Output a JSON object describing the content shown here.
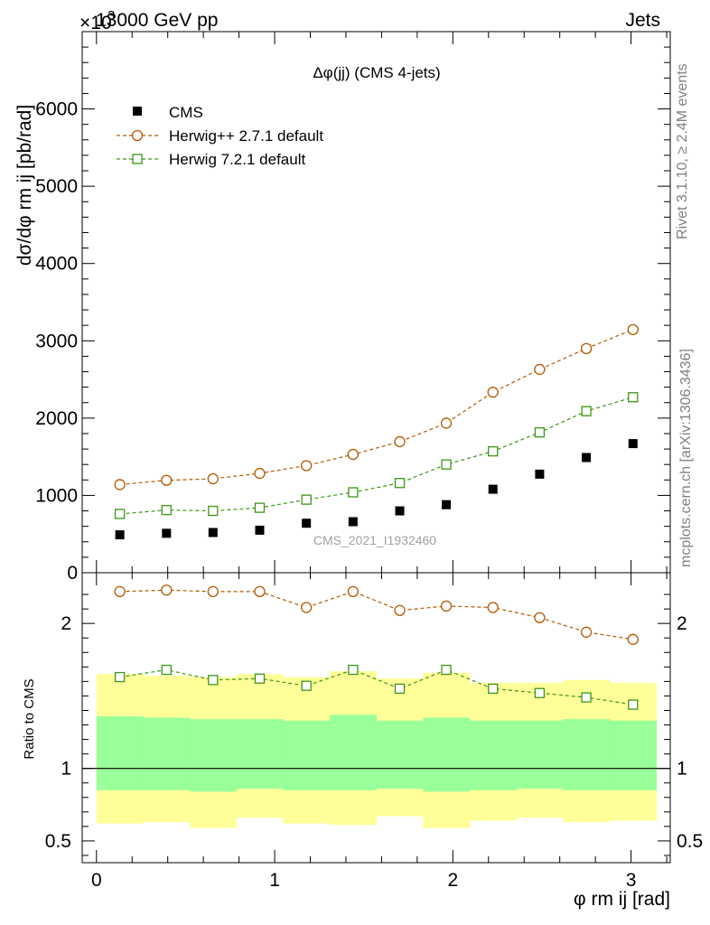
{
  "header": {
    "beam": "13000 GeV pp",
    "process": "Jets",
    "exponent": "×10",
    "exponent_power": "3"
  },
  "side_labels": {
    "rivet": "Rivet 3.1.10, ≥ 2.4M events",
    "mcplots": "mcplots.cern.ch [arXiv:1306.3436]"
  },
  "watermark": "CMS_2021_I1932460",
  "chart_data": [
    {
      "type": "scatter",
      "title": "Δφ(jj) (CMS 4-jets)",
      "xlabel": "φ rm ij [rad]",
      "ylabel": "dσ/dφ rm ij [pb/rad]",
      "xlim": [
        -0.08,
        3.22
      ],
      "ylim": [
        0,
        7000
      ],
      "y_scale_factor": 1000,
      "yticks": [
        0,
        1000,
        2000,
        3000,
        4000,
        5000,
        6000
      ],
      "ytick_labels": [
        "0",
        "1000",
        "2000",
        "3000",
        "4000",
        "5000",
        "6000"
      ],
      "legend_position": "top-left",
      "x": [
        0.131,
        0.393,
        0.654,
        0.916,
        1.178,
        1.44,
        1.702,
        1.963,
        2.225,
        2.487,
        2.749,
        3.011
      ],
      "series": [
        {
          "name": "CMS",
          "style": "filled-square",
          "color": "#000000",
          "values": [
            490,
            510,
            520,
            550,
            640,
            660,
            800,
            880,
            1080,
            1275,
            1490,
            1670
          ]
        },
        {
          "name": "Herwig++ 2.7.1 default",
          "style": "open-circle-dashed",
          "color": "#b35900",
          "values": [
            1140,
            1195,
            1215,
            1285,
            1385,
            1530,
            1695,
            1935,
            2335,
            2630,
            2900,
            3145
          ]
        },
        {
          "name": "Herwig 7.2.1 default",
          "style": "open-square-dashed",
          "color": "#3c9614",
          "values": [
            760,
            810,
            800,
            840,
            945,
            1040,
            1160,
            1400,
            1570,
            1815,
            2090,
            2270
          ]
        }
      ]
    },
    {
      "type": "scatter",
      "xlabel": "φ rm ij [rad]",
      "ylabel": "Ratio to CMS",
      "xlim": [
        -0.08,
        3.22
      ],
      "ylim": [
        0.35,
        2.35
      ],
      "xticks": [
        0,
        1,
        2,
        3
      ],
      "xtick_labels": [
        "0",
        "1",
        "2",
        "3"
      ],
      "yticks": [
        0.5,
        1,
        2
      ],
      "ytick_labels": [
        "0.5",
        "1",
        "2"
      ],
      "bin_edges": [
        0.0,
        0.262,
        0.524,
        0.785,
        1.047,
        1.309,
        1.571,
        1.833,
        2.094,
        2.356,
        2.618,
        2.88,
        3.142
      ],
      "band_inner": {
        "color": "#99ff99",
        "low": [
          0.85,
          0.85,
          0.84,
          0.86,
          0.85,
          0.85,
          0.86,
          0.84,
          0.85,
          0.86,
          0.85,
          0.85
        ],
        "high": [
          1.36,
          1.35,
          1.34,
          1.34,
          1.33,
          1.37,
          1.33,
          1.35,
          1.33,
          1.33,
          1.34,
          1.33
        ]
      },
      "band_outer": {
        "color": "#ffff99",
        "low": [
          0.62,
          0.63,
          0.59,
          0.66,
          0.62,
          0.61,
          0.67,
          0.59,
          0.64,
          0.66,
          0.63,
          0.64
        ],
        "high": [
          1.65,
          1.64,
          1.63,
          1.65,
          1.63,
          1.67,
          1.62,
          1.66,
          1.59,
          1.59,
          1.61,
          1.59
        ]
      },
      "x": [
        0.131,
        0.393,
        0.654,
        0.916,
        1.178,
        1.44,
        1.702,
        1.963,
        2.225,
        2.487,
        2.749,
        3.011
      ],
      "series": [
        {
          "name": "Herwig++ 2.7.1 default",
          "style": "open-circle-dashed",
          "color": "#b35900",
          "values": [
            2.22,
            2.23,
            2.22,
            2.22,
            2.11,
            2.22,
            2.09,
            2.12,
            2.11,
            2.04,
            1.94,
            1.89
          ]
        },
        {
          "name": "Herwig 7.2.1 default",
          "style": "open-square-dashed",
          "color": "#3c9614",
          "values": [
            1.63,
            1.68,
            1.61,
            1.62,
            1.57,
            1.68,
            1.55,
            1.68,
            1.55,
            1.52,
            1.49,
            1.44
          ]
        }
      ]
    }
  ]
}
